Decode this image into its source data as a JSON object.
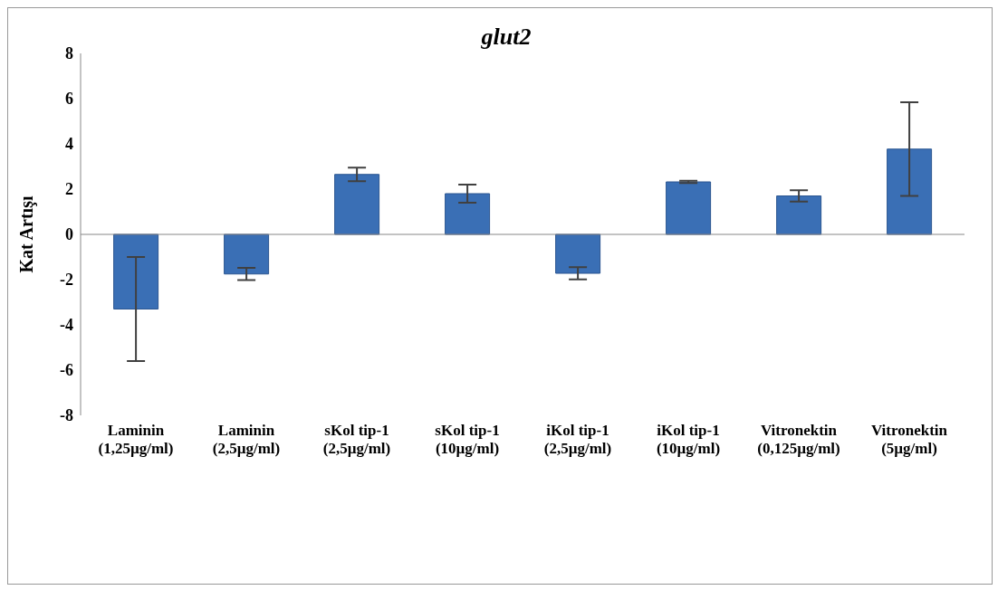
{
  "chart_data": {
    "type": "bar",
    "title": "glut2",
    "ylabel": "Kat Artışı",
    "categories": [
      "Laminin (1,25µg/ml)",
      "Laminin (2,5µg/ml)",
      "sKol tip-1 (2,5µg/ml)",
      "sKol tip-1 (10µg/ml)",
      "iKol tip-1 (2,5µg/ml)",
      "iKol tip-1 (10µg/ml)",
      "Vitronektin (0,125µg/ml)",
      "Vitronektin (5µg/ml)"
    ],
    "values": [
      -3.3,
      -1.75,
      2.65,
      1.8,
      -1.72,
      2.32,
      1.7,
      3.77
    ],
    "errors": [
      2.3,
      0.27,
      0.3,
      0.4,
      0.27,
      0.05,
      0.25,
      2.07
    ],
    "color": "#3a6fb5",
    "ylim": [
      -8,
      8
    ],
    "yticks": [
      -8,
      -6,
      -4,
      -2,
      0,
      2,
      4,
      6,
      8
    ]
  }
}
